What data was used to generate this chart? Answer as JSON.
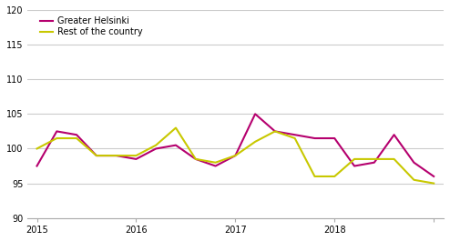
{
  "greater_helsinki": [
    97.5,
    102.5,
    102.0,
    99.0,
    99.0,
    98.5,
    100.0,
    100.5,
    98.5,
    97.5,
    99.0,
    105.0,
    102.5,
    102.0,
    101.5,
    101.5,
    97.5,
    98.0,
    102.0,
    98.0,
    96.0
  ],
  "rest_of_country": [
    100.0,
    101.5,
    101.5,
    99.0,
    99.0,
    99.0,
    100.5,
    103.0,
    98.5,
    98.0,
    99.0,
    101.0,
    102.5,
    101.5,
    96.0,
    96.0,
    98.5,
    98.5,
    98.5,
    95.5,
    95.0
  ],
  "x_tick_positions": [
    0,
    5,
    10,
    15,
    20
  ],
  "x_tick_labels": [
    "2015",
    "2016",
    "2017",
    "2018",
    ""
  ],
  "ylim": [
    90,
    120
  ],
  "yticks": [
    90,
    95,
    100,
    105,
    110,
    115,
    120
  ],
  "color_helsinki": "#b5006e",
  "color_rest": "#c8c800",
  "background_color": "#ffffff",
  "grid_color": "#cccccc",
  "linewidth": 1.5,
  "legend_labels": [
    "Greater Helsinki",
    "Rest of the country"
  ]
}
